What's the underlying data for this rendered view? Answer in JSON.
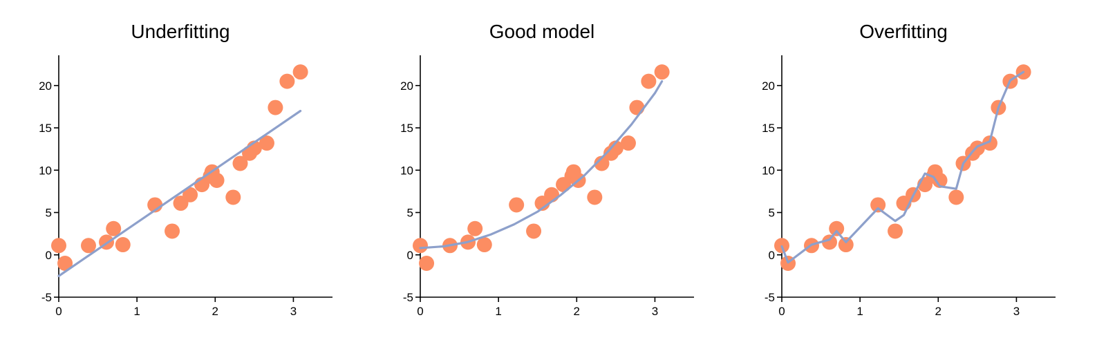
{
  "chart_data": [
    {
      "type": "scatter",
      "title": "Underfitting",
      "xlabel": "",
      "ylabel": "",
      "xlim": [
        0,
        3.5
      ],
      "ylim": [
        -5,
        23
      ],
      "x_ticks": [
        0,
        1,
        2,
        3
      ],
      "y_ticks": [
        -5,
        0,
        5,
        10,
        15,
        20
      ],
      "grid": false,
      "legend": "none",
      "colors": {
        "points": "#fc8d62",
        "line": "#8da0cb"
      },
      "series": [
        {
          "kind": "points",
          "x": [
            0.0,
            0.08,
            0.38,
            0.61,
            0.7,
            0.82,
            1.23,
            1.45,
            1.56,
            1.68,
            1.83,
            1.94,
            1.96,
            2.02,
            2.23,
            2.32,
            2.44,
            2.5,
            2.66,
            2.77,
            2.92,
            3.09
          ],
          "y": [
            1.1,
            -1.0,
            1.1,
            1.5,
            3.1,
            1.2,
            5.9,
            2.8,
            6.1,
            7.1,
            8.3,
            9.3,
            9.8,
            8.8,
            6.8,
            10.8,
            12.0,
            12.6,
            13.2,
            17.4,
            20.5,
            21.6
          ]
        },
        {
          "kind": "line",
          "x": [
            0.0,
            3.09
          ],
          "y": [
            -2.5,
            17.0
          ]
        }
      ]
    },
    {
      "type": "scatter",
      "title": "Good model",
      "xlabel": "",
      "ylabel": "",
      "xlim": [
        0,
        3.5
      ],
      "ylim": [
        -5,
        23
      ],
      "x_ticks": [
        0,
        1,
        2,
        3
      ],
      "y_ticks": [
        -5,
        0,
        5,
        10,
        15,
        20
      ],
      "grid": false,
      "legend": "none",
      "colors": {
        "points": "#fc8d62",
        "line": "#8da0cb"
      },
      "series": [
        {
          "kind": "points",
          "x": [
            0.0,
            0.08,
            0.38,
            0.61,
            0.7,
            0.82,
            1.23,
            1.45,
            1.56,
            1.68,
            1.83,
            1.94,
            1.96,
            2.02,
            2.23,
            2.32,
            2.44,
            2.5,
            2.66,
            2.77,
            2.92,
            3.09
          ],
          "y": [
            1.1,
            -1.0,
            1.1,
            1.5,
            3.1,
            1.2,
            5.9,
            2.8,
            6.1,
            7.1,
            8.3,
            9.3,
            9.8,
            8.8,
            6.8,
            10.8,
            12.0,
            12.6,
            13.2,
            17.4,
            20.5,
            21.6
          ]
        },
        {
          "kind": "line",
          "x": [
            0.0,
            0.3,
            0.6,
            0.9,
            1.2,
            1.5,
            1.8,
            2.1,
            2.4,
            2.7,
            3.0,
            3.09
          ],
          "y": [
            0.8,
            1.0,
            1.5,
            2.4,
            3.6,
            5.1,
            7.1,
            9.4,
            12.2,
            15.4,
            19.1,
            20.5
          ]
        }
      ]
    },
    {
      "type": "scatter",
      "title": "Overfitting",
      "xlabel": "",
      "ylabel": "",
      "xlim": [
        0,
        3.5
      ],
      "ylim": [
        -5,
        23
      ],
      "x_ticks": [
        0,
        1,
        2,
        3
      ],
      "y_ticks": [
        -5,
        0,
        5,
        10,
        15,
        20
      ],
      "grid": false,
      "legend": "none",
      "colors": {
        "points": "#fc8d62",
        "line": "#8da0cb"
      },
      "series": [
        {
          "kind": "points",
          "x": [
            0.0,
            0.08,
            0.38,
            0.61,
            0.7,
            0.82,
            1.23,
            1.45,
            1.56,
            1.68,
            1.83,
            1.94,
            1.96,
            2.02,
            2.23,
            2.32,
            2.44,
            2.5,
            2.66,
            2.77,
            2.92,
            3.09
          ],
          "y": [
            1.1,
            -1.0,
            1.1,
            1.5,
            3.1,
            1.2,
            5.9,
            2.8,
            6.1,
            7.1,
            8.3,
            9.3,
            9.8,
            8.8,
            6.8,
            10.8,
            12.0,
            12.6,
            13.2,
            17.4,
            20.5,
            21.6
          ]
        },
        {
          "kind": "line",
          "x": [
            0.0,
            0.08,
            0.38,
            0.61,
            0.7,
            0.82,
            1.23,
            1.45,
            1.56,
            1.68,
            1.83,
            1.94,
            2.02,
            2.23,
            2.32,
            2.44,
            2.5,
            2.66,
            2.77,
            2.92,
            3.09
          ],
          "y": [
            1.0,
            -0.9,
            1.2,
            1.8,
            2.8,
            1.5,
            5.5,
            4.0,
            4.7,
            7.0,
            9.6,
            9.2,
            8.1,
            7.8,
            10.8,
            12.2,
            12.8,
            13.4,
            17.4,
            20.6,
            21.6
          ]
        }
      ]
    }
  ]
}
